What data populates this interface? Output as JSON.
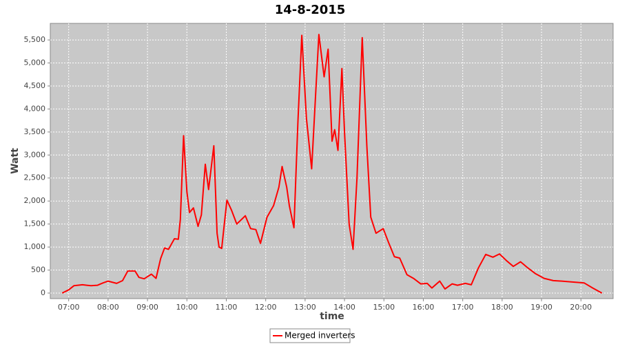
{
  "chart_data": {
    "type": "line",
    "title": "14-8-2015",
    "x_label": "time",
    "y_label": "Watt",
    "x": [
      "06:50",
      "07:00",
      "07:08",
      "07:21",
      "07:34",
      "07:44",
      "07:52",
      "08:00",
      "08:13",
      "08:22",
      "08:30",
      "08:41",
      "08:47",
      "08:55",
      "09:06",
      "09:13",
      "09:20",
      "09:26",
      "09:32",
      "09:41",
      "09:47",
      "09:50",
      "09:55",
      "10:00",
      "10:04",
      "10:10",
      "10:17",
      "10:22",
      "10:28",
      "10:33",
      "10:41",
      "10:46",
      "10:49",
      "10:53",
      "11:01",
      "11:08",
      "11:16",
      "11:29",
      "11:37",
      "11:45",
      "11:52",
      "12:02",
      "12:12",
      "12:20",
      "12:25",
      "12:32",
      "12:36",
      "12:43",
      "12:49",
      "12:55",
      "13:02",
      "13:10",
      "13:16",
      "13:21",
      "13:29",
      "13:35",
      "13:41",
      "13:45",
      "13:50",
      "13:56",
      "14:00",
      "14:07",
      "14:13",
      "14:19",
      "14:27",
      "14:34",
      "14:40",
      "14:48",
      "14:59",
      "15:07",
      "15:16",
      "15:24",
      "15:35",
      "15:45",
      "15:56",
      "16:06",
      "16:13",
      "16:25",
      "16:33",
      "16:44",
      "16:52",
      "17:04",
      "17:13",
      "17:24",
      "17:35",
      "17:46",
      "17:56",
      "18:07",
      "18:17",
      "18:28",
      "18:38",
      "18:51",
      "19:04",
      "19:18",
      "19:31",
      "19:47",
      "20:05",
      "20:18",
      "20:32"
    ],
    "series": [
      {
        "name": "Merged inverters",
        "color": "#ff0000",
        "values": [
          0,
          70,
          160,
          180,
          160,
          170,
          220,
          260,
          210,
          270,
          480,
          480,
          340,
          310,
          410,
          320,
          750,
          980,
          950,
          1180,
          1170,
          1600,
          3420,
          2200,
          1750,
          1850,
          1450,
          1700,
          2800,
          2250,
          3200,
          1300,
          1000,
          970,
          2020,
          1800,
          1500,
          1680,
          1400,
          1380,
          1080,
          1650,
          1900,
          2300,
          2750,
          2300,
          1900,
          1420,
          3700,
          5600,
          3800,
          2700,
          4300,
          5620,
          4700,
          5300,
          3300,
          3550,
          3100,
          4880,
          3500,
          1500,
          950,
          2500,
          5550,
          3200,
          1650,
          1300,
          1400,
          1100,
          790,
          760,
          400,
          320,
          200,
          210,
          110,
          260,
          90,
          200,
          170,
          210,
          180,
          550,
          840,
          780,
          850,
          700,
          580,
          680,
          560,
          420,
          320,
          270,
          260,
          240,
          220,
          110,
          0
        ]
      }
    ],
    "xlim": [
      "06:32",
      "20:49"
    ],
    "xticks": [
      "07:00",
      "08:00",
      "09:00",
      "10:00",
      "11:00",
      "12:00",
      "13:00",
      "14:00",
      "15:00",
      "16:00",
      "17:00",
      "18:00",
      "19:00",
      "20:00"
    ],
    "ylim": [
      -120,
      5860
    ],
    "yticks": [
      0,
      500,
      {
        "value": 1000,
        "label": "1,000"
      },
      {
        "value": 1500,
        "label": "1,500"
      },
      {
        "value": 2000,
        "label": "2,000"
      },
      {
        "value": 2500,
        "label": "2,500"
      },
      {
        "value": 3000,
        "label": "3,000"
      },
      {
        "value": 3500,
        "label": "3,500"
      },
      {
        "value": 4000,
        "label": "4,000"
      },
      {
        "value": 4500,
        "label": "4,500"
      },
      {
        "value": 5000,
        "label": "5,000"
      },
      {
        "value": 5500,
        "label": "5,500"
      }
    ],
    "grid": true
  }
}
